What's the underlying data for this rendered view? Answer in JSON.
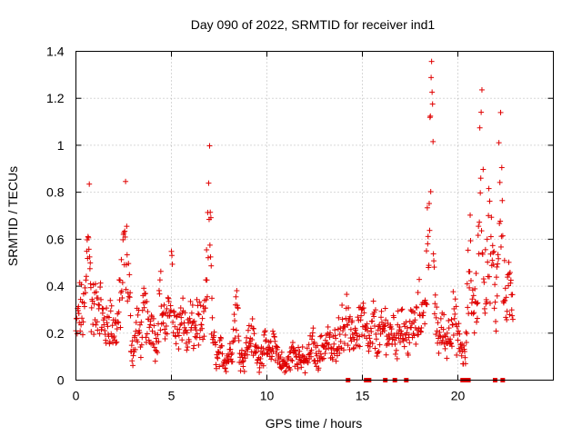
{
  "chart_data": {
    "type": "scatter",
    "title": "Day 090 of 2022, SRMTID for receiver ind1",
    "xlabel": "GPS time / hours",
    "ylabel": "SRMTID / TECUs",
    "xlim": [
      0,
      25
    ],
    "ylim": [
      0,
      1.4
    ],
    "xticks": [
      0,
      5,
      10,
      15,
      20
    ],
    "xtick_labels": [
      "0",
      "5",
      "10",
      "15",
      "20"
    ],
    "yticks": [
      0,
      0.2,
      0.4,
      0.6,
      0.8,
      1.0,
      1.2,
      1.4
    ],
    "ytick_labels": [
      "0",
      "0.2",
      "0.4",
      "0.6",
      "0.8",
      "1",
      "1.2",
      "1.4"
    ],
    "grid": true,
    "color": "#e00000",
    "marker": "plus",
    "series": [
      {
        "name": "SRMTID",
        "x": [
          0.0,
          0.2,
          0.4,
          0.5,
          0.7,
          0.75,
          0.8,
          1.0,
          1.2,
          1.4,
          1.6,
          1.8,
          2.0,
          2.2,
          2.4,
          2.6,
          2.7,
          2.8,
          2.9,
          3.0,
          3.2,
          3.4,
          3.6,
          3.8,
          4.0,
          4.2,
          4.4,
          4.6,
          4.8,
          5.0,
          5.1,
          5.2,
          5.4,
          5.6,
          5.8,
          6.0,
          6.2,
          6.4,
          6.6,
          6.8,
          6.9,
          7.0,
          7.05,
          7.1,
          7.2,
          7.4,
          7.6,
          7.8,
          8.0,
          8.2,
          8.4,
          8.6,
          8.8,
          9.0,
          9.2,
          9.4,
          9.6,
          9.8,
          10.0,
          10.2,
          10.4,
          10.6,
          10.8,
          11.0,
          11.2,
          11.4,
          11.6,
          11.8,
          12.0,
          12.2,
          12.4,
          12.6,
          12.8,
          13.0,
          13.2,
          13.4,
          13.6,
          13.8,
          14.0,
          14.2,
          14.4,
          14.6,
          14.8,
          15.0,
          15.2,
          15.4,
          15.6,
          15.8,
          16.0,
          16.2,
          16.4,
          16.6,
          16.8,
          17.0,
          17.2,
          17.4,
          17.6,
          17.8,
          18.0,
          18.2,
          18.4,
          18.5,
          18.6,
          18.7,
          18.8,
          19.0,
          19.2,
          19.4,
          19.6,
          19.8,
          20.0,
          20.2,
          20.4,
          20.6,
          20.8,
          21.0,
          21.1,
          21.2,
          21.3,
          21.4,
          21.6,
          21.8,
          22.0,
          22.1,
          22.2,
          22.3,
          22.4,
          22.6,
          22.8
        ],
        "y": [
          0.22,
          0.34,
          0.3,
          0.38,
          0.85,
          0.45,
          0.36,
          0.32,
          0.4,
          0.28,
          0.24,
          0.3,
          0.22,
          0.27,
          0.46,
          0.7,
          0.52,
          0.4,
          0.18,
          0.12,
          0.26,
          0.2,
          0.34,
          0.22,
          0.3,
          0.15,
          0.4,
          0.28,
          0.24,
          0.52,
          0.3,
          0.2,
          0.26,
          0.34,
          0.18,
          0.28,
          0.22,
          0.3,
          0.2,
          0.35,
          0.58,
          1.03,
          0.75,
          0.3,
          0.18,
          0.1,
          0.14,
          0.08,
          0.12,
          0.16,
          0.38,
          0.12,
          0.1,
          0.18,
          0.22,
          0.14,
          0.1,
          0.16,
          0.14,
          0.12,
          0.2,
          0.1,
          0.08,
          0.06,
          0.1,
          0.14,
          0.12,
          0.1,
          0.08,
          0.12,
          0.18,
          0.1,
          0.14,
          0.16,
          0.2,
          0.12,
          0.18,
          0.22,
          0.26,
          0.3,
          0.18,
          0.22,
          0.25,
          0.3,
          0.2,
          0.16,
          0.28,
          0.18,
          0.22,
          0.26,
          0.2,
          0.24,
          0.18,
          0.3,
          0.22,
          0.2,
          0.26,
          0.24,
          0.34,
          0.28,
          0.6,
          0.92,
          1.21,
          0.85,
          0.3,
          0.2,
          0.24,
          0.18,
          0.26,
          0.3,
          0.2,
          0.14,
          0.1,
          0.62,
          0.34,
          0.4,
          0.58,
          1.24,
          0.9,
          0.4,
          0.7,
          0.55,
          0.36,
          0.6,
          1.15,
          0.8,
          0.4,
          0.38,
          0.42
        ],
        "extra_markers_x": [
          14.25,
          15.2,
          15.35,
          16.2,
          16.7,
          17.3,
          20.25,
          20.45,
          20.55,
          21.95,
          22.35
        ],
        "extra_markers_y": [
          0,
          0,
          0,
          0,
          0,
          0,
          0,
          0,
          0,
          0,
          0
        ]
      }
    ]
  }
}
